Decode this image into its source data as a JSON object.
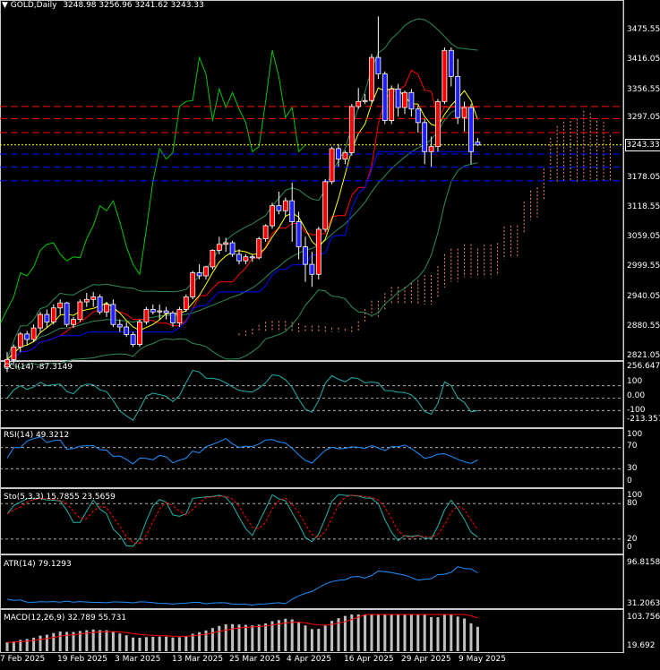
{
  "header": {
    "symbol_label": "GOLD,Daily",
    "open": "3248.98",
    "high": "3256.96",
    "low": "3241.62",
    "close": "3243.33"
  },
  "current_price_label": "3243.33",
  "price_axis": {
    "ticks": [
      "3475.55",
      "3416.05",
      "3356.55",
      "3297.05",
      "3237.55",
      "3178.05",
      "3118.55",
      "3059.05",
      "2999.55",
      "2940.05",
      "2880.55",
      "2821.05"
    ]
  },
  "date_axis": {
    "ticks": [
      "7 Feb 2025",
      "19 Feb 2025",
      "3 Mar 2025",
      "13 Mar 2025",
      "25 Mar 2025",
      "4 Apr 2025",
      "16 Apr 2025",
      "29 Apr 2025",
      "9 May 2025"
    ]
  },
  "panels": {
    "cci": {
      "label": "CCI(14) -87.3149",
      "ticks": [
        "256.6471",
        "100",
        "0.00",
        "-100",
        "-213.3574"
      ]
    },
    "rsi": {
      "label": "RSI(14) 49.3212",
      "ticks": [
        "100",
        "70",
        "30",
        "0"
      ]
    },
    "stoch": {
      "label": "Sto(5,3,3) 15.7855 23.5659",
      "ticks": [
        "100",
        "80",
        "20",
        "0"
      ]
    },
    "atr": {
      "label": "ATR(14) 79.1293",
      "ticks": [
        "96.8158",
        "31.2063"
      ]
    },
    "macd": {
      "label": "MACD(12,26,9) 32.789 55.731",
      "ticks": [
        "103.756",
        "19.692"
      ]
    }
  },
  "colors": {
    "bull": "#ff0000",
    "bear": "#2020ff",
    "grid": "#c8c8c8",
    "cci": "#20b2aa",
    "rsi": "#1e90ff",
    "stoch_main": "#20b2aa",
    "stoch_signal": "#ff0000",
    "atr": "#1e90ff",
    "macd_hist": "#c0c0c0",
    "macd_signal": "#ff0000",
    "bands": "#2e8b57",
    "tenkan": "#ff0000",
    "kijun": "#0000ff",
    "chikou": "#00c800",
    "ma": "#ffff00"
  },
  "chart_data": {
    "type": "candlestick",
    "title": "GOLD,Daily",
    "ylim": [
      2821.05,
      3504
    ],
    "dates": [
      "2025-02-03",
      "2025-02-04",
      "2025-02-05",
      "2025-02-06",
      "2025-02-07",
      "2025-02-10",
      "2025-02-11",
      "2025-02-12",
      "2025-02-13",
      "2025-02-14",
      "2025-02-17",
      "2025-02-18",
      "2025-02-19",
      "2025-02-20",
      "2025-02-21",
      "2025-02-24",
      "2025-02-25",
      "2025-02-26",
      "2025-02-27",
      "2025-02-28",
      "2025-03-03",
      "2025-03-04",
      "2025-03-05",
      "2025-03-06",
      "2025-03-07",
      "2025-03-10",
      "2025-03-11",
      "2025-03-12",
      "2025-03-13",
      "2025-03-14",
      "2025-03-17",
      "2025-03-18",
      "2025-03-19",
      "2025-03-20",
      "2025-03-21",
      "2025-03-24",
      "2025-03-25",
      "2025-03-26",
      "2025-03-27",
      "2025-03-28",
      "2025-03-31",
      "2025-04-01",
      "2025-04-02",
      "2025-04-03",
      "2025-04-04",
      "2025-04-07",
      "2025-04-08",
      "2025-04-09",
      "2025-04-10",
      "2025-04-11",
      "2025-04-14",
      "2025-04-15",
      "2025-04-16",
      "2025-04-17",
      "2025-04-18",
      "2025-04-21",
      "2025-04-22",
      "2025-04-23",
      "2025-04-24",
      "2025-04-25",
      "2025-04-28",
      "2025-04-29",
      "2025-04-30",
      "2025-05-01",
      "2025-05-02",
      "2025-05-05",
      "2025-05-06",
      "2025-05-07",
      "2025-05-08",
      "2025-05-09",
      "2025-05-12",
      "2025-05-13"
    ],
    "ohlc": [
      [
        2800,
        2830,
        2790,
        2815
      ],
      [
        2815,
        2845,
        2808,
        2840
      ],
      [
        2840,
        2870,
        2830,
        2866
      ],
      [
        2866,
        2872,
        2845,
        2855
      ],
      [
        2855,
        2885,
        2850,
        2878
      ],
      [
        2878,
        2910,
        2870,
        2905
      ],
      [
        2905,
        2915,
        2880,
        2890
      ],
      [
        2890,
        2925,
        2885,
        2918
      ],
      [
        2918,
        2935,
        2905,
        2928
      ],
      [
        2928,
        2930,
        2880,
        2885
      ],
      [
        2885,
        2900,
        2878,
        2895
      ],
      [
        2895,
        2935,
        2890,
        2930
      ],
      [
        2930,
        2948,
        2920,
        2935
      ],
      [
        2935,
        2950,
        2920,
        2940
      ],
      [
        2940,
        2945,
        2905,
        2910
      ],
      [
        2910,
        2930,
        2900,
        2925
      ],
      [
        2925,
        2935,
        2880,
        2885
      ],
      [
        2885,
        2895,
        2870,
        2880
      ],
      [
        2880,
        2890,
        2860,
        2865
      ],
      [
        2865,
        2870,
        2840,
        2845
      ],
      [
        2845,
        2895,
        2840,
        2890
      ],
      [
        2890,
        2920,
        2885,
        2915
      ],
      [
        2915,
        2925,
        2905,
        2910
      ],
      [
        2910,
        2925,
        2895,
        2912
      ],
      [
        2912,
        2920,
        2895,
        2908
      ],
      [
        2908,
        2912,
        2880,
        2888
      ],
      [
        2888,
        2920,
        2880,
        2915
      ],
      [
        2915,
        2945,
        2910,
        2940
      ],
      [
        2940,
        2992,
        2935,
        2988
      ],
      [
        2988,
        3005,
        2975,
        2982
      ],
      [
        2982,
        3002,
        2975,
        3000
      ],
      [
        3000,
        3035,
        2995,
        3033
      ],
      [
        3033,
        3060,
        3025,
        3045
      ],
      [
        3045,
        3058,
        3030,
        3048
      ],
      [
        3048,
        3052,
        3020,
        3025
      ],
      [
        3025,
        3035,
        3005,
        3012
      ],
      [
        3012,
        3025,
        3005,
        3020
      ],
      [
        3020,
        3025,
        3010,
        3018
      ],
      [
        3018,
        3060,
        3015,
        3056
      ],
      [
        3056,
        3085,
        3050,
        3082
      ],
      [
        3082,
        3128,
        3076,
        3122
      ],
      [
        3122,
        3150,
        3105,
        3112
      ],
      [
        3112,
        3138,
        3100,
        3132
      ],
      [
        3132,
        3168,
        3050,
        3090
      ],
      [
        3090,
        3110,
        3015,
        3040
      ],
      [
        3040,
        3060,
        2970,
        3005
      ],
      [
        3005,
        3030,
        2960,
        2985
      ],
      [
        2985,
        3080,
        2975,
        3075
      ],
      [
        3075,
        3175,
        3070,
        3170
      ],
      [
        3170,
        3240,
        3165,
        3236
      ],
      [
        3236,
        3245,
        3200,
        3215
      ],
      [
        3215,
        3232,
        3205,
        3228
      ],
      [
        3228,
        3325,
        3222,
        3320
      ],
      [
        3320,
        3357,
        3315,
        3330
      ],
      [
        3330,
        3345,
        3325,
        3332
      ],
      [
        3332,
        3425,
        3328,
        3418
      ],
      [
        3418,
        3500,
        3375,
        3385
      ],
      [
        3385,
        3390,
        3285,
        3292
      ],
      [
        3292,
        3362,
        3285,
        3355
      ],
      [
        3355,
        3365,
        3300,
        3318
      ],
      [
        3318,
        3352,
        3305,
        3348
      ],
      [
        3348,
        3355,
        3300,
        3315
      ],
      [
        3315,
        3322,
        3268,
        3288
      ],
      [
        3288,
        3295,
        3205,
        3230
      ],
      [
        3230,
        3260,
        3200,
        3240
      ],
      [
        3240,
        3335,
        3230,
        3330
      ],
      [
        3330,
        3438,
        3325,
        3432
      ],
      [
        3432,
        3438,
        3360,
        3380
      ],
      [
        3380,
        3415,
        3285,
        3298
      ],
      [
        3298,
        3330,
        3270,
        3318
      ],
      [
        3318,
        3325,
        3205,
        3230
      ],
      [
        3248.98,
        3256.96,
        3241.62,
        3243.33
      ]
    ],
    "horizontal_levels_red": [
      3320,
      3296,
      3268
    ],
    "horizontal_levels_blue": [
      3225,
      3199,
      3172
    ],
    "horizontal_level_yellow": 3243.33,
    "subplots": {
      "cci": {
        "range": [
          -213.3574,
          256.6471
        ]
      },
      "rsi": {
        "range": [
          0,
          100
        ]
      },
      "stoch": {
        "range": [
          0,
          100
        ]
      },
      "atr": {
        "range": [
          31.2063,
          96.8158
        ]
      },
      "macd": {
        "range": [
          19.692,
          103.756
        ]
      }
    }
  }
}
